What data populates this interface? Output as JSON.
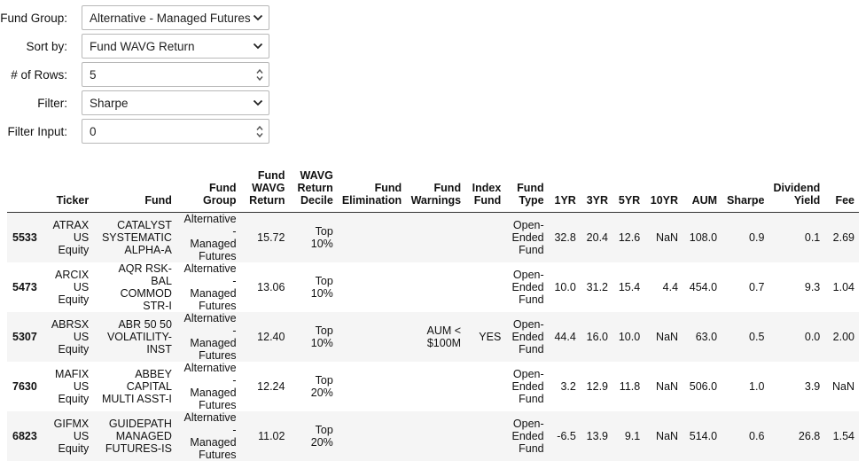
{
  "controls": [
    {
      "label": "Fund Group:",
      "value": "Alternative - Managed Futures",
      "kind": "select"
    },
    {
      "label": "Sort by:",
      "value": "Fund WAVG Return",
      "kind": "select"
    },
    {
      "label": "# of Rows:",
      "value": "5",
      "kind": "number"
    },
    {
      "label": "Filter:",
      "value": "Sharpe",
      "kind": "select"
    },
    {
      "label": "Filter Input:",
      "value": "0",
      "kind": "number"
    }
  ],
  "table": {
    "headers": [
      {
        "lines": [
          ""
        ]
      },
      {
        "lines": [
          "Ticker"
        ]
      },
      {
        "lines": [
          "Fund"
        ]
      },
      {
        "lines": [
          "Fund",
          "Group"
        ]
      },
      {
        "lines": [
          "Fund",
          "WAVG",
          "Return"
        ]
      },
      {
        "lines": [
          "WAVG",
          "Return",
          "Decile"
        ]
      },
      {
        "lines": [
          "Fund",
          "Elimination"
        ]
      },
      {
        "lines": [
          "Fund",
          "Warnings"
        ]
      },
      {
        "lines": [
          "Index",
          "Fund"
        ]
      },
      {
        "lines": [
          "Fund",
          "Type"
        ]
      },
      {
        "lines": [
          "1YR"
        ]
      },
      {
        "lines": [
          "3YR"
        ]
      },
      {
        "lines": [
          "5YR"
        ]
      },
      {
        "lines": [
          "10YR"
        ]
      },
      {
        "lines": [
          "AUM"
        ]
      },
      {
        "lines": [
          "Sharpe"
        ]
      },
      {
        "lines": [
          "Dividend",
          "Yield"
        ]
      },
      {
        "lines": [
          "Fee"
        ]
      }
    ],
    "rows": [
      {
        "index": "5533",
        "ticker": [
          "ATRAX",
          "US",
          "Equity"
        ],
        "fund": [
          "CATALYST",
          "SYSTEMATIC",
          "ALPHA-A"
        ],
        "group": [
          "Alternative -",
          "Managed",
          "Futures"
        ],
        "wavg_return": "15.72",
        "decile": [
          "Top",
          "10%"
        ],
        "elimination": [
          ""
        ],
        "warnings": [
          ""
        ],
        "index_fund": "",
        "type": [
          "Open-",
          "Ended",
          "Fund"
        ],
        "yr1": "32.8",
        "yr3": "20.4",
        "yr5": "12.6",
        "yr10": "NaN",
        "aum": "108.0",
        "sharpe": "0.9",
        "dividend_yield": "0.1",
        "fee": "2.69"
      },
      {
        "index": "5473",
        "ticker": [
          "ARCIX",
          "US",
          "Equity"
        ],
        "fund": [
          "AQR RSK-BAL",
          "COMMOD",
          "STR-I"
        ],
        "group": [
          "Alternative -",
          "Managed",
          "Futures"
        ],
        "wavg_return": "13.06",
        "decile": [
          "Top",
          "10%"
        ],
        "elimination": [
          ""
        ],
        "warnings": [
          ""
        ],
        "index_fund": "",
        "type": [
          "Open-",
          "Ended",
          "Fund"
        ],
        "yr1": "10.0",
        "yr3": "31.2",
        "yr5": "15.4",
        "yr10": "4.4",
        "aum": "454.0",
        "sharpe": "0.7",
        "dividend_yield": "9.3",
        "fee": "1.04"
      },
      {
        "index": "5307",
        "ticker": [
          "ABRSX",
          "US",
          "Equity"
        ],
        "fund": [
          "ABR 50 50",
          "VOLATILITY-",
          "INST"
        ],
        "group": [
          "Alternative -",
          "Managed",
          "Futures"
        ],
        "wavg_return": "12.40",
        "decile": [
          "Top",
          "10%"
        ],
        "elimination": [
          ""
        ],
        "warnings": [
          "AUM <",
          "$100M"
        ],
        "index_fund": "YES",
        "type": [
          "Open-",
          "Ended",
          "Fund"
        ],
        "yr1": "44.4",
        "yr3": "16.0",
        "yr5": "10.0",
        "yr10": "NaN",
        "aum": "63.0",
        "sharpe": "0.5",
        "dividend_yield": "0.0",
        "fee": "2.00"
      },
      {
        "index": "7630",
        "ticker": [
          "MAFIX",
          "US",
          "Equity"
        ],
        "fund": [
          "ABBEY",
          "CAPITAL",
          "MULTI ASST-I"
        ],
        "group": [
          "Alternative -",
          "Managed",
          "Futures"
        ],
        "wavg_return": "12.24",
        "decile": [
          "Top",
          "20%"
        ],
        "elimination": [
          ""
        ],
        "warnings": [
          ""
        ],
        "index_fund": "",
        "type": [
          "Open-",
          "Ended",
          "Fund"
        ],
        "yr1": "3.2",
        "yr3": "12.9",
        "yr5": "11.8",
        "yr10": "NaN",
        "aum": "506.0",
        "sharpe": "1.0",
        "dividend_yield": "3.9",
        "fee": "NaN"
      },
      {
        "index": "6823",
        "ticker": [
          "GIFMX",
          "US",
          "Equity"
        ],
        "fund": [
          "GUIDEPATH",
          "MANAGED",
          "FUTURES-IS"
        ],
        "group": [
          "Alternative -",
          "Managed",
          "Futures"
        ],
        "wavg_return": "11.02",
        "decile": [
          "Top",
          "20%"
        ],
        "elimination": [
          ""
        ],
        "warnings": [
          ""
        ],
        "index_fund": "",
        "type": [
          "Open-",
          "Ended",
          "Fund"
        ],
        "yr1": "-6.5",
        "yr3": "13.9",
        "yr5": "9.1",
        "yr10": "NaN",
        "aum": "514.0",
        "sharpe": "0.6",
        "dividend_yield": "26.8",
        "fee": "1.54"
      }
    ]
  }
}
